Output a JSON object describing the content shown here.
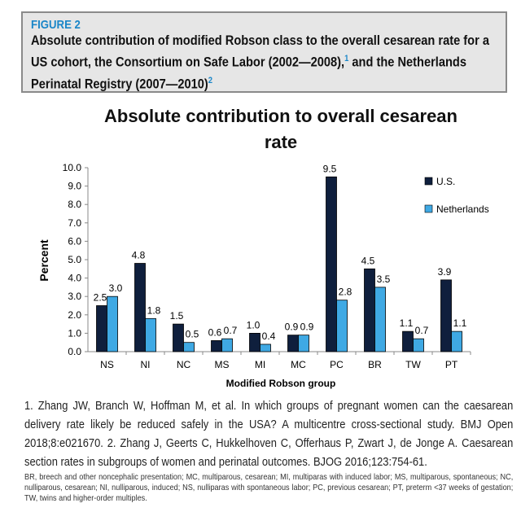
{
  "figure": {
    "label": "FIGURE 2",
    "caption": "Absolute contribution of modified Robson class to the overall cesarean rate for a US cohort, the Consortium on Safe Labor (2002—2008),",
    "sup1": "1",
    "caption_mid": " and the Netherlands Perinatal Registry (2007—2010)",
    "sup2": "2"
  },
  "chart_data": {
    "type": "bar",
    "title": "Absolute contribution to overall cesarean rate",
    "title_line1": "Absolute contribution to overall cesarean",
    "title_line2": "rate",
    "xlabel": "Modified Robson group",
    "ylabel": "Percent",
    "ylim": [
      0,
      10
    ],
    "yticks": [
      "0.0",
      "1.0",
      "2.0",
      "3.0",
      "4.0",
      "5.0",
      "6.0",
      "7.0",
      "8.0",
      "9.0",
      "10.0"
    ],
    "categories": [
      "NS",
      "NI",
      "NC",
      "MS",
      "MI",
      "MC",
      "PC",
      "BR",
      "TW",
      "PT"
    ],
    "series": [
      {
        "name": "U.S.",
        "color": "#0f1f3d",
        "values": [
          2.5,
          4.8,
          1.5,
          0.6,
          1.0,
          0.9,
          9.5,
          4.5,
          1.1,
          3.9
        ]
      },
      {
        "name": "Netherlands",
        "color": "#3fa9e4",
        "values": [
          3.0,
          1.8,
          0.5,
          0.7,
          0.4,
          0.9,
          2.8,
          3.5,
          0.7,
          1.1
        ]
      }
    ],
    "grid": false,
    "legend": "right"
  },
  "refs": "1. Zhang JW, Branch W, Hoffman M, et al. In which groups of pregnant women can the caesarean delivery rate likely be reduced safely in the USA? A multicentre cross-sectional study. BMJ Open 2018;8:e021670. 2. Zhang J, Geerts C, Hukkelhoven C, Offerhaus P, Zwart J, de Jonge A. Caesarean section rates in subgroups of women and perinatal outcomes. BJOG 2016;123:754-61.",
  "abbreviations": "BR, breech and other noncephalic presentation; MC, multiparous, cesarean; MI, multiparas with induced labor; MS, multiparous, spontaneous; NC, nulliparous, cesarean; NI, nulliparous, induced; NS, nulliparas with spontaneous labor; PC, previous cesarean; PT, preterm <37 weeks of gestation; TW, twins and higher-order multiples."
}
